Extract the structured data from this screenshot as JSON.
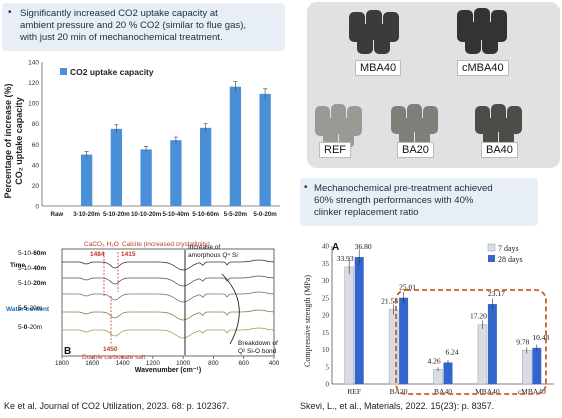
{
  "left_bullet": {
    "bullet": "•",
    "lines": [
      "Significantly increased CO2 uptake capacity at",
      "ambient pressure and 20 % CO2 (similar to flue gas),",
      "with just 20 min of mechanochemical treatment."
    ]
  },
  "right_bullet": {
    "bullet": "•",
    "lines": [
      "Mechanochemical pre-treatment achieved",
      "60% strength performances with 40%",
      "clinker replacement ratio"
    ]
  },
  "photo": {
    "labels": [
      "MBA40",
      "cMBA40",
      "REF",
      "BA20",
      "BA40"
    ]
  },
  "colors": {
    "bar_blue": "#4a90d9",
    "highlight_red": "#c0392b",
    "dashed_orange": "#c5622a",
    "series_grey": "#d9dde2",
    "series_blue": "#3366cc"
  },
  "chart_data": [
    {
      "type": "bar",
      "ylabel": "Percentage of increase (%) CO2 uptake capacity",
      "ylabel_lines": [
        "Percentage of increase (%)",
        "CO₂ uptake capacity"
      ],
      "legend": "CO2 uptake capacity",
      "categories": [
        "Raw",
        "3-10-20m",
        "5-10-20m",
        "10-10-20m",
        "5-10-40m",
        "5-10-60m",
        "5-5-20m",
        "5-0-20m"
      ],
      "values": [
        0,
        50,
        75,
        55,
        64,
        76,
        116,
        109
      ],
      "errors": [
        0,
        3,
        4,
        3,
        3,
        4,
        5,
        5
      ],
      "yticks": [
        0,
        20,
        40,
        60,
        80,
        100,
        120,
        140
      ],
      "ylim": [
        0,
        140
      ],
      "grid": false
    },
    {
      "type": "line",
      "xlabel": "Wavenumber (cm⁻¹)",
      "xticks": [
        "1800",
        "1600",
        "1400",
        "1200",
        "1000",
        "800",
        "600",
        "400"
      ],
      "xlim": [
        1800,
        400
      ],
      "panel_label": "B",
      "series": [
        {
          "name": "5-10-60m"
        },
        {
          "name": "5-10-40m"
        },
        {
          "name": "5-10-20m"
        },
        {
          "name": "5-5-20m"
        },
        {
          "name": "5-0-20m"
        }
      ],
      "series_labels": [
        {
          "prefix": "5-10-",
          "bold": "60m"
        },
        {
          "prefix": "5-10-",
          "bold": "40m"
        },
        {
          "prefix": "5-10-",
          "bold": "20m"
        },
        {
          "prefix": "5-",
          "bold": "5",
          "suffix": "-20m"
        },
        {
          "prefix": "5-",
          "bold": "0",
          "suffix": "-20m"
        }
      ],
      "group_labels": [
        "Time",
        "Water content"
      ],
      "annotations": {
        "caco3": "CaCO₃ H₂O",
        "calcite": "Calcite (increased crystallinity)",
        "peak_1484": "1484",
        "peak_1415": "1415",
        "peak_1450": "1450",
        "double_carbonate": "Double carbonate salt",
        "amorphous": "Increase of",
        "amorphous2": "amorphous Q⁴ Si",
        "breakdown": "Breakdown of",
        "breakdown2": "Q² Si-O bond"
      }
    },
    {
      "type": "bar",
      "ylabel": "Compressive strength (MPa)",
      "panel_label": "A",
      "categories": [
        "REF",
        "BA20",
        "BA40",
        "MBA40",
        "cMBA40"
      ],
      "series": [
        {
          "name": "7 days",
          "values": [
            33.93,
            21.58,
            4.26,
            17.2,
            9.78
          ]
        },
        {
          "name": "28 days",
          "values": [
            36.8,
            25.01,
            6.24,
            23.17,
            10.48
          ]
        }
      ],
      "value_labels": [
        [
          "33.93",
          "36.80"
        ],
        [
          "21.58",
          "25.01"
        ],
        [
          "4.26",
          "6.24"
        ],
        [
          "17.20",
          "23.17"
        ],
        [
          "9.78",
          "10.48"
        ]
      ],
      "yticks": [
        0,
        5,
        10,
        15,
        20,
        25,
        30,
        35,
        40
      ],
      "ylim": [
        0,
        40
      ],
      "legend_position": "top-right"
    }
  ],
  "citations": {
    "left": "Ke et al. Journal of CO2 Utilization, 2023. 68: p. 102367.",
    "right": "Skevi, L., et al., Materials, 2022. 15(23): p. 8357."
  }
}
